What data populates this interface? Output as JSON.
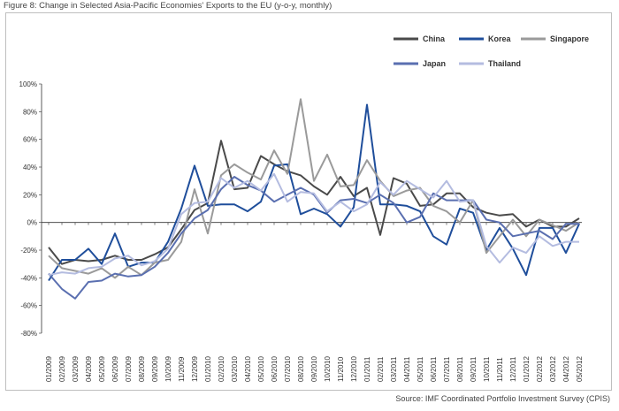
{
  "figure": {
    "title": "Figure 8: Change in Selected Asia-Pacific Economies' Exports to the EU (y-o-y, monthly)",
    "source": "Source: IMF Coordinated Portfolio Investment Survey (CPIS)"
  },
  "chart_data": {
    "type": "line",
    "ylim": [
      -80,
      100
    ],
    "yticks": [
      "100%",
      "80%",
      "60%",
      "40%",
      "20%",
      "0%",
      "-20%",
      "-40%",
      "-60%",
      "-80%"
    ],
    "grid": false,
    "legend_placement": "top-right",
    "x": [
      "01/2009",
      "02/2009",
      "03/2009",
      "04/2009",
      "05/2009",
      "06/2009",
      "07/2009",
      "08/2009",
      "09/2009",
      "10/2009",
      "11/2009",
      "12/2009",
      "01/2010",
      "02/2010",
      "03/2010",
      "04/2010",
      "05/2010",
      "06/2010",
      "07/2010",
      "08/2010",
      "09/2010",
      "10/2010",
      "11/2010",
      "12/2010",
      "01/2011",
      "02/2011",
      "03/2011",
      "04/2011",
      "05/2011",
      "06/2011",
      "07/2011",
      "08/2011",
      "09/2011",
      "10/2011",
      "11/2011",
      "12/2011",
      "01/2012",
      "02/2012",
      "03/2012",
      "04/2012",
      "05/2012"
    ],
    "xtick_labels": [
      "01/2009",
      "02/2009",
      "03/2009",
      "04/2009",
      "05/2009",
      "06/2009",
      "07/2009",
      "08/2009",
      "09/2009",
      "10/2009",
      "11/2009",
      "12/2009",
      "01/2010",
      "02/2010",
      "03/2010",
      "04/2010",
      "05/2010",
      "06/2010",
      "07/2010",
      "08/2010",
      "09/2010",
      "10/2010",
      "11/2010",
      "12/2010",
      "01/2011",
      "02/2011",
      "03/2011",
      "04/2011",
      "05/2011",
      "06/2011",
      "07/2011",
      "08/2011",
      "09/2011",
      "10/2011",
      "11/2011",
      "12/2011",
      "01/2012",
      "02/2012",
      "03/2012",
      "04/2012",
      "05/2012"
    ],
    "series": [
      {
        "name": "China",
        "color": "#4a4a4a",
        "values": [
          -18,
          -30,
          -27,
          -28,
          -27,
          -24,
          -27,
          -27,
          -23,
          -18,
          -5,
          9,
          14,
          59,
          24,
          25,
          48,
          42,
          37,
          34,
          26,
          20,
          33,
          19,
          25,
          -9,
          32,
          28,
          12,
          13,
          21,
          21,
          11,
          7,
          5,
          6,
          -3,
          2,
          -3,
          -3,
          3
        ]
      },
      {
        "name": "Korea",
        "color": "#1f4e9b",
        "values": [
          -42,
          -27,
          -27,
          -19,
          -30,
          -8,
          -32,
          -29,
          -29,
          -14,
          10,
          41,
          12,
          13,
          13,
          8,
          15,
          41,
          42,
          6,
          10,
          6,
          -3,
          11,
          85,
          13,
          13,
          12,
          8,
          -10,
          -16,
          10,
          7,
          -20,
          -4,
          -19,
          -38,
          -4,
          -4,
          -22,
          -1
        ]
      },
      {
        "name": "Singapore",
        "color": "#9a9a9a",
        "values": [
          -24,
          -33,
          -35,
          -37,
          -33,
          -40,
          -32,
          -38,
          -29,
          -27,
          -14,
          24,
          -8,
          34,
          42,
          36,
          31,
          52,
          35,
          89,
          30,
          49,
          26,
          27,
          45,
          30,
          19,
          23,
          25,
          12,
          8,
          0,
          16,
          -22,
          -10,
          2,
          -10,
          2,
          -2,
          -6,
          0
        ]
      },
      {
        "name": "Japan",
        "color": "#5a6fb0",
        "values": [
          -37,
          -48,
          -55,
          -43,
          -42,
          -37,
          -39,
          -38,
          -32,
          -22,
          -8,
          3,
          9,
          24,
          33,
          27,
          23,
          15,
          20,
          25,
          20,
          7,
          16,
          17,
          14,
          20,
          14,
          0,
          4,
          21,
          16,
          16,
          16,
          2,
          0,
          -10,
          -8,
          -6,
          -12,
          -1,
          -1
        ]
      },
      {
        "name": "Thailand",
        "color": "#b4bce0",
        "values": [
          -38,
          -36,
          -37,
          -33,
          -32,
          -26,
          -24,
          -31,
          -28,
          -19,
          6,
          14,
          15,
          32,
          25,
          30,
          23,
          35,
          15,
          22,
          21,
          8,
          15,
          8,
          13,
          29,
          20,
          30,
          24,
          18,
          30,
          15,
          16,
          -17,
          -29,
          -18,
          -22,
          -10,
          -17,
          -14,
          -14
        ]
      }
    ]
  }
}
